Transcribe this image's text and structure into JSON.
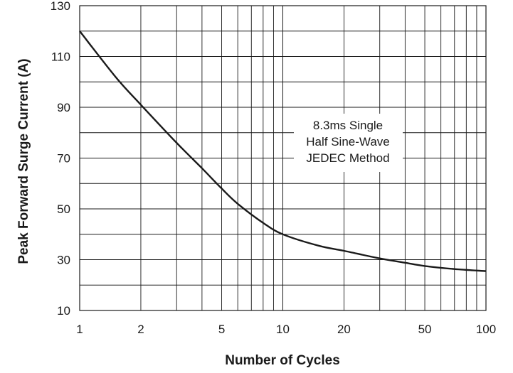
{
  "chart_data": {
    "type": "line",
    "xlabel": "Number of Cycles",
    "ylabel": "Peak Forward Surge Current (A)",
    "xscale": "log",
    "xlim": [
      1,
      100
    ],
    "ylim": [
      10,
      130
    ],
    "grid": true,
    "x_ticks": [
      {
        "value": 1,
        "label": "1"
      },
      {
        "value": 2,
        "label": "2"
      },
      {
        "value": 5,
        "label": "5"
      },
      {
        "value": 10,
        "label": "10"
      },
      {
        "value": 20,
        "label": "20"
      },
      {
        "value": 50,
        "label": "50"
      },
      {
        "value": 100,
        "label": "100"
      }
    ],
    "y_ticks": [
      {
        "value": 10,
        "label": "10"
      },
      {
        "value": 30,
        "label": "30"
      },
      {
        "value": 50,
        "label": "50"
      },
      {
        "value": 70,
        "label": "70"
      },
      {
        "value": 90,
        "label": "90"
      },
      {
        "value": 110,
        "label": "110"
      },
      {
        "value": 130,
        "label": "130"
      }
    ],
    "series": [
      {
        "x": [
          1,
          1.5,
          2,
          3,
          4,
          5,
          6,
          8,
          10,
          15,
          20,
          30,
          40,
          50,
          70,
          100
        ],
        "y": [
          120,
          102,
          91,
          76,
          66,
          58,
          52,
          44.5,
          40,
          35.5,
          33.5,
          30.5,
          28.8,
          27.5,
          26.3,
          25.5
        ]
      }
    ],
    "annotation": [
      "8.3ms Single",
      "Half Sine-Wave",
      "JEDEC Method"
    ]
  }
}
